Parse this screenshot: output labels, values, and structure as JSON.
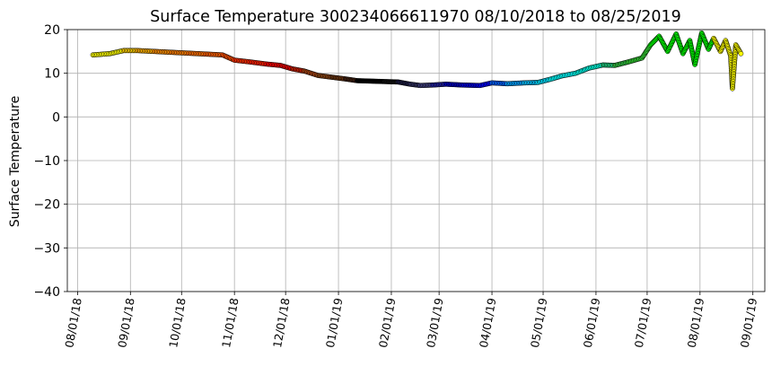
{
  "chart_data": {
    "type": "line",
    "title": "Surface Temperature 300234066611970  08/10/2018 to 08/25/2019",
    "xlabel": "",
    "ylabel": "Surface Temperature",
    "ylim": [
      -40,
      20
    ],
    "yticks": [
      "−40",
      "−30",
      "−20",
      "−10",
      "0",
      "10",
      "20"
    ],
    "yticks_values": [
      -40,
      -30,
      -20,
      -10,
      0,
      10,
      20
    ],
    "xlim": [
      "2018-07-26",
      "2019-09-08"
    ],
    "xticks": [
      "08/01/18",
      "09/01/18",
      "10/01/18",
      "11/01/18",
      "12/01/18",
      "01/01/19",
      "02/01/19",
      "03/01/19",
      "04/01/19",
      "05/01/19",
      "06/01/19",
      "07/01/19",
      "08/01/19",
      "09/01/19"
    ],
    "xticks_dates": [
      "2018-08-01",
      "2018-09-01",
      "2018-10-01",
      "2018-11-01",
      "2018-12-01",
      "2019-01-01",
      "2019-02-01",
      "2019-03-01",
      "2019-04-01",
      "2019-05-01",
      "2019-06-01",
      "2019-07-01",
      "2019-08-01",
      "2019-09-01"
    ],
    "grid": true,
    "series": [
      {
        "style": "markers colored by time",
        "points": [
          {
            "x": "2018-08-10",
            "y": 14.2,
            "color": "#ffff00"
          },
          {
            "x": "2018-08-20",
            "y": 14.5,
            "color": "#ffff00"
          },
          {
            "x": "2018-08-28",
            "y": 15.2,
            "color": "#ffd000"
          },
          {
            "x": "2018-09-05",
            "y": 15.2,
            "color": "#ffb000"
          },
          {
            "x": "2018-09-15",
            "y": 15.0,
            "color": "#ff9000"
          },
          {
            "x": "2018-09-25",
            "y": 14.8,
            "color": "#ff8000"
          },
          {
            "x": "2018-10-05",
            "y": 14.6,
            "color": "#ff7000"
          },
          {
            "x": "2018-10-15",
            "y": 14.4,
            "color": "#ff6000"
          },
          {
            "x": "2018-10-25",
            "y": 14.2,
            "color": "#ff5000"
          },
          {
            "x": "2018-11-01",
            "y": 13.0,
            "color": "#ff3000"
          },
          {
            "x": "2018-11-10",
            "y": 12.6,
            "color": "#ff2000"
          },
          {
            "x": "2018-11-20",
            "y": 12.1,
            "color": "#ff0000"
          },
          {
            "x": "2018-11-28",
            "y": 11.8,
            "color": "#ee0000"
          },
          {
            "x": "2018-12-05",
            "y": 11.0,
            "color": "#cc2000"
          },
          {
            "x": "2018-12-12",
            "y": 10.5,
            "color": "#a04010"
          },
          {
            "x": "2018-12-20",
            "y": 9.5,
            "color": "#8b4513"
          },
          {
            "x": "2018-12-28",
            "y": 9.1,
            "color": "#6a3510"
          },
          {
            "x": "2019-01-05",
            "y": 8.7,
            "color": "#402010"
          },
          {
            "x": "2019-01-12",
            "y": 8.3,
            "color": "#000000"
          },
          {
            "x": "2019-01-20",
            "y": 8.2,
            "color": "#000000"
          },
          {
            "x": "2019-01-28",
            "y": 8.1,
            "color": "#101010"
          },
          {
            "x": "2019-02-05",
            "y": 8.0,
            "color": "#1a1a40"
          },
          {
            "x": "2019-02-12",
            "y": 7.5,
            "color": "#303060"
          },
          {
            "x": "2019-02-18",
            "y": 7.2,
            "color": "#404080"
          },
          {
            "x": "2019-02-25",
            "y": 7.3,
            "color": "#2020a0"
          },
          {
            "x": "2019-03-05",
            "y": 7.5,
            "color": "#0000c0"
          },
          {
            "x": "2019-03-15",
            "y": 7.3,
            "color": "#0000e0"
          },
          {
            "x": "2019-03-25",
            "y": 7.2,
            "color": "#0000ff"
          },
          {
            "x": "2019-04-01",
            "y": 7.8,
            "color": "#0060ff"
          },
          {
            "x": "2019-04-10",
            "y": 7.6,
            "color": "#00a0ff"
          },
          {
            "x": "2019-04-20",
            "y": 7.8,
            "color": "#00c0ff"
          },
          {
            "x": "2019-04-28",
            "y": 7.9,
            "color": "#00e0ff"
          },
          {
            "x": "2019-05-05",
            "y": 8.6,
            "color": "#00ffff"
          },
          {
            "x": "2019-05-12",
            "y": 9.4,
            "color": "#00ffff"
          },
          {
            "x": "2019-05-20",
            "y": 10.0,
            "color": "#00ffee"
          },
          {
            "x": "2019-05-28",
            "y": 11.2,
            "color": "#00ffe0"
          },
          {
            "x": "2019-06-05",
            "y": 11.9,
            "color": "#20d080"
          },
          {
            "x": "2019-06-12",
            "y": 11.8,
            "color": "#30c040"
          },
          {
            "x": "2019-06-20",
            "y": 12.6,
            "color": "#32cd32"
          },
          {
            "x": "2019-06-28",
            "y": 13.5,
            "color": "#32cd32"
          },
          {
            "x": "2019-07-03",
            "y": 16.5,
            "color": "#00ff00"
          },
          {
            "x": "2019-07-08",
            "y": 18.5,
            "color": "#00ff00"
          },
          {
            "x": "2019-07-13",
            "y": 15.0,
            "color": "#00ff00"
          },
          {
            "x": "2019-07-18",
            "y": 19.0,
            "color": "#00ff00"
          },
          {
            "x": "2019-07-22",
            "y": 14.5,
            "color": "#00ff00"
          },
          {
            "x": "2019-07-26",
            "y": 17.5,
            "color": "#00ff00"
          },
          {
            "x": "2019-07-29",
            "y": 12.0,
            "color": "#00ff00"
          },
          {
            "x": "2019-08-02",
            "y": 19.2,
            "color": "#00ff00"
          },
          {
            "x": "2019-08-06",
            "y": 15.5,
            "color": "#00ff00"
          },
          {
            "x": "2019-08-09",
            "y": 18.0,
            "color": "#ffff00"
          },
          {
            "x": "2019-08-13",
            "y": 15.0,
            "color": "#ffff00"
          },
          {
            "x": "2019-08-16",
            "y": 17.5,
            "color": "#ffff00"
          },
          {
            "x": "2019-08-19",
            "y": 14.0,
            "color": "#ffff00"
          },
          {
            "x": "2019-08-20",
            "y": 6.5,
            "color": "#ffff00"
          },
          {
            "x": "2019-08-22",
            "y": 16.5,
            "color": "#ffff00"
          },
          {
            "x": "2019-08-25",
            "y": 14.5,
            "color": "#ffff00"
          }
        ]
      }
    ]
  }
}
